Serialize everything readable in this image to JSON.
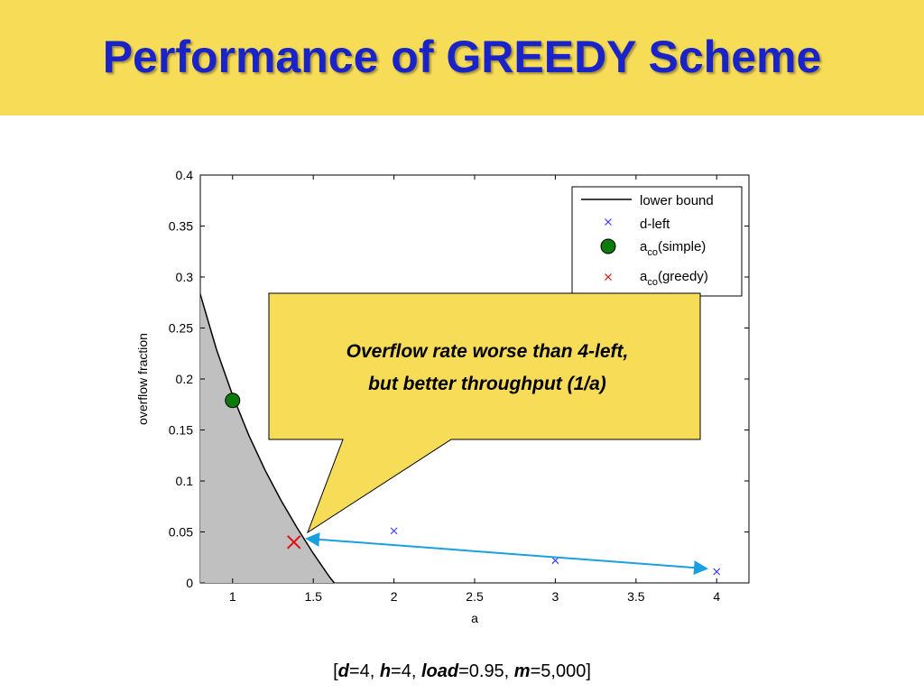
{
  "slide": {
    "title": "Performance of GREEDY Scheme",
    "params": {
      "open_bracket": "[",
      "d_name": "d",
      "d_value": "=4, ",
      "h_name": "h",
      "h_value": "=4, ",
      "load_name": "load",
      "load_value": "=0.95, ",
      "m_name": "m",
      "m_value": "=5,000",
      "close_bracket": "]"
    }
  },
  "callout": {
    "line1": "Overflow rate worse than 4-left,",
    "line2": "but better throughput (1/a)"
  },
  "colors": {
    "title_band": "#f7dc58",
    "title_text": "#1a23c8",
    "callout_fill": "#f7dc58",
    "shaded_region": "#c0c0c0",
    "dleft_marker": "#3c3cff",
    "simple_marker": "#0a7a0a",
    "greedy_marker": "#e01010",
    "arrow": "#1aa0e0"
  },
  "chart_data": {
    "type": "scatter",
    "xlabel": "a",
    "ylabel": "overflow fraction",
    "xlim": [
      0.8,
      4.2
    ],
    "ylim": [
      0,
      0.4
    ],
    "x_ticks": [
      1,
      1.5,
      2,
      2.5,
      3,
      3.5,
      4
    ],
    "x_tick_labels": [
      "1",
      "1.5",
      "2",
      "2.5",
      "3",
      "3.5",
      "4"
    ],
    "y_ticks": [
      0,
      0.05,
      0.1,
      0.15,
      0.2,
      0.25,
      0.3,
      0.35,
      0.4
    ],
    "y_tick_labels": [
      "0",
      "0.05",
      "0.1",
      "0.15",
      "0.2",
      "0.25",
      "0.3",
      "0.35",
      "0.4"
    ],
    "grid": false,
    "legend_position": "top-right",
    "lower_bound": {
      "x": [
        0.8,
        0.9,
        1.0,
        1.1,
        1.2,
        1.3,
        1.4,
        1.5,
        1.6,
        1.63
      ],
      "y": [
        0.283,
        0.229,
        0.184,
        0.145,
        0.111,
        0.081,
        0.054,
        0.029,
        0.006,
        0.0
      ]
    },
    "dleft": {
      "x": [
        2,
        3,
        4
      ],
      "y": [
        0.051,
        0.022,
        0.011
      ]
    },
    "aco_simple": {
      "x": 1.0,
      "y": 0.179
    },
    "aco_greedy": {
      "x": 1.38,
      "y": 0.04
    },
    "legend": {
      "lower_bound": "lower bound",
      "dleft": "d-left",
      "simple_base": "a",
      "simple_sub": "co",
      "simple_tail": "(simple)",
      "greedy_base": "a",
      "greedy_sub": "co",
      "greedy_tail": "(greedy)"
    }
  }
}
